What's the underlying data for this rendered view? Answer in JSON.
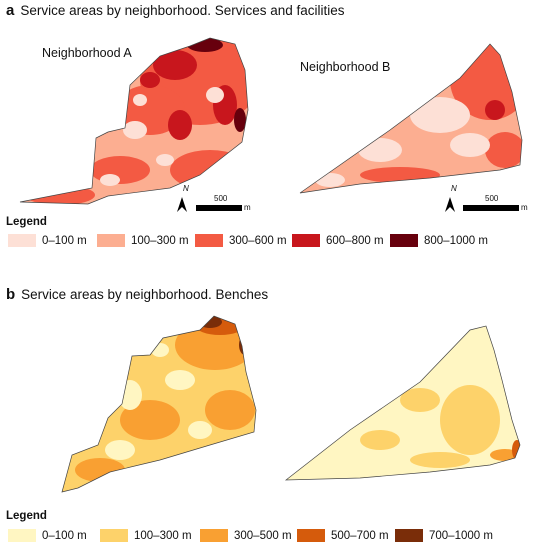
{
  "panel_a": {
    "letter": "a",
    "title": "Service areas by neighborhood. Services and facilities",
    "neighborhood_a": "Neighborhood A",
    "neighborhood_b": "Neighborhood B",
    "scale_value": "500",
    "scale_unit": "m",
    "north_label": "N",
    "legend_title": "Legend",
    "legend": [
      {
        "label": "0–100 m",
        "color": "#fde0d6"
      },
      {
        "label": "100–300 m",
        "color": "#fcae91"
      },
      {
        "label": "300–600 m",
        "color": "#f35a43"
      },
      {
        "label": "600–800 m",
        "color": "#c8161d"
      },
      {
        "label": "800–1000 m",
        "color": "#67000d"
      }
    ]
  },
  "panel_b": {
    "letter": "b",
    "title": "Service areas by neighborhood. Benches",
    "legend_title": "Legend",
    "legend": [
      {
        "label": "0–100 m",
        "color": "#fff6c2"
      },
      {
        "label": "100–300 m",
        "color": "#fdd26a"
      },
      {
        "label": "300–500 m",
        "color": "#f9a032"
      },
      {
        "label": "500–700 m",
        "color": "#d55b0c"
      },
      {
        "label": "700–1000 m",
        "color": "#7a2d09"
      }
    ]
  }
}
